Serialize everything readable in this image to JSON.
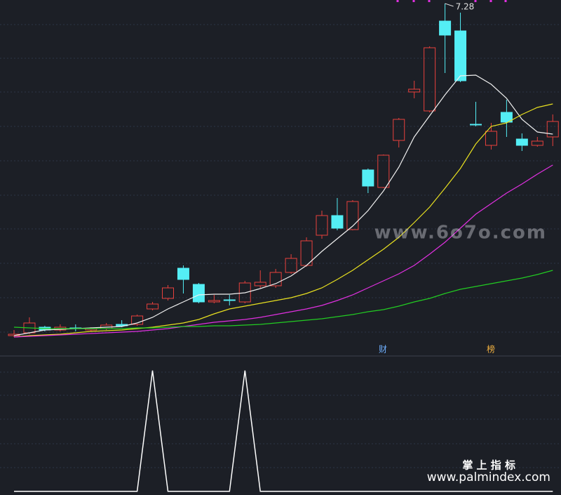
{
  "chart_data": [
    {
      "type": "candlestick",
      "categories": [
        null,
        null,
        null,
        null,
        null,
        null,
        null,
        null,
        null,
        null,
        null,
        null,
        null,
        null,
        null,
        null,
        null,
        null,
        null,
        null,
        null,
        null,
        null,
        null,
        null,
        null,
        null,
        null,
        null,
        null,
        null,
        null,
        null,
        null,
        null,
        null
      ],
      "open": [
        2.55,
        2.59,
        2.67,
        2.63,
        2.66,
        2.63,
        2.65,
        2.71,
        2.71,
        2.93,
        3.08,
        3.51,
        3.28,
        3.03,
        3.06,
        3.03,
        3.26,
        3.26,
        3.45,
        3.55,
        3.98,
        4.26,
        4.06,
        4.91,
        4.66,
        5.33,
        6.02,
        5.75,
        7.03,
        6.89,
        5.56,
        5.26,
        5.73,
        5.35,
        5.26,
        5.38
      ],
      "high": [
        2.63,
        2.81,
        2.69,
        2.71,
        2.71,
        2.67,
        2.73,
        2.77,
        2.85,
        3.03,
        3.27,
        3.55,
        3.3,
        3.13,
        3.13,
        3.33,
        3.48,
        3.5,
        3.71,
        3.95,
        4.33,
        4.51,
        4.48,
        4.93,
        5.13,
        5.65,
        6.18,
        6.67,
        7.28,
        7.15,
        5.88,
        5.58,
        5.91,
        5.43,
        5.38,
        5.7
      ],
      "low": [
        2.53,
        2.57,
        2.61,
        2.61,
        2.61,
        2.61,
        2.63,
        2.67,
        2.69,
        2.91,
        3.05,
        3.15,
        3.01,
        3.01,
        2.98,
        3.01,
        3.23,
        3.23,
        3.43,
        3.53,
        3.93,
        4.05,
        4.05,
        4.58,
        4.65,
        5.23,
        5.93,
        5.73,
        6.29,
        6.16,
        5.53,
        5.2,
        5.38,
        5.18,
        5.24,
        5.25
      ],
      "close": [
        2.57,
        2.73,
        2.63,
        2.67,
        2.65,
        2.65,
        2.7,
        2.69,
        2.83,
        3.0,
        3.23,
        3.35,
        3.03,
        3.05,
        3.05,
        3.3,
        3.31,
        3.45,
        3.65,
        3.9,
        4.26,
        4.08,
        4.46,
        4.68,
        5.12,
        5.63,
        6.06,
        6.65,
        6.83,
        6.18,
        5.55,
        5.46,
        5.59,
        5.26,
        5.32,
        5.6
      ],
      "up_color": "#e8403c",
      "down_color": "#54eef5",
      "ylim": [
        2.28,
        7.33
      ],
      "high_label_index": 28,
      "lines": [
        {
          "color": "#f0f0f0",
          "values": [
            2.55,
            2.59,
            2.63,
            2.64,
            2.65,
            2.66,
            2.67,
            2.68,
            2.73,
            2.81,
            2.93,
            3.03,
            3.13,
            3.14,
            3.14,
            3.16,
            3.22,
            3.29,
            3.4,
            3.55,
            3.75,
            3.93,
            4.11,
            4.33,
            4.61,
            4.95,
            5.38,
            5.68,
            5.98,
            6.25,
            6.26,
            6.13,
            5.93,
            5.63,
            5.45,
            5.42
          ]
        },
        {
          "color": "#e8e020",
          "values": [
            2.53,
            2.55,
            2.56,
            2.57,
            2.59,
            2.61,
            2.62,
            2.63,
            2.65,
            2.67,
            2.7,
            2.73,
            2.78,
            2.86,
            2.93,
            2.97,
            3.01,
            3.05,
            3.09,
            3.15,
            3.23,
            3.35,
            3.48,
            3.63,
            3.78,
            3.95,
            4.16,
            4.38,
            4.65,
            4.93,
            5.28,
            5.53,
            5.58,
            5.7,
            5.8,
            5.85
          ]
        },
        {
          "color": "#e030e0",
          "values": [
            2.53,
            2.54,
            2.55,
            2.56,
            2.57,
            2.58,
            2.59,
            2.6,
            2.61,
            2.63,
            2.65,
            2.68,
            2.71,
            2.74,
            2.76,
            2.78,
            2.81,
            2.85,
            2.89,
            2.93,
            2.98,
            3.05,
            3.13,
            3.23,
            3.33,
            3.43,
            3.55,
            3.71,
            3.88,
            4.08,
            4.28,
            4.43,
            4.58,
            4.71,
            4.85,
            4.98
          ]
        },
        {
          "color": "#22cc22",
          "values": [
            2.67,
            2.66,
            2.65,
            2.65,
            2.65,
            2.65,
            2.65,
            2.65,
            2.66,
            2.66,
            2.67,
            2.68,
            2.68,
            2.69,
            2.69,
            2.7,
            2.71,
            2.73,
            2.75,
            2.77,
            2.79,
            2.82,
            2.85,
            2.89,
            2.92,
            2.97,
            3.03,
            3.08,
            3.15,
            3.21,
            3.25,
            3.29,
            3.33,
            3.37,
            3.42,
            3.48
          ]
        }
      ]
    },
    {
      "type": "line",
      "categories": [
        null,
        null,
        null,
        null,
        null,
        null,
        null,
        null,
        null,
        null,
        null,
        null,
        null,
        null,
        null,
        null,
        null,
        null,
        null,
        null,
        null,
        null,
        null,
        null,
        null,
        null,
        null,
        null,
        null,
        null,
        null,
        null,
        null,
        null,
        null,
        null
      ],
      "values": [
        0,
        0,
        0,
        0,
        0,
        0,
        0,
        0,
        0,
        1,
        0,
        0,
        0,
        0,
        0,
        1,
        0,
        0,
        0,
        0,
        0,
        0,
        0,
        0,
        0,
        0,
        0,
        0,
        0,
        0,
        0,
        0,
        0,
        0,
        0,
        0
      ],
      "color": "#ffffff",
      "ylim": [
        -0.03,
        1.12
      ]
    }
  ],
  "event_labels": [
    "财",
    "榜"
  ],
  "watermarks": [
    "www.6o7o.com",
    "掌 上 指 标",
    "www.palmindex.com"
  ]
}
